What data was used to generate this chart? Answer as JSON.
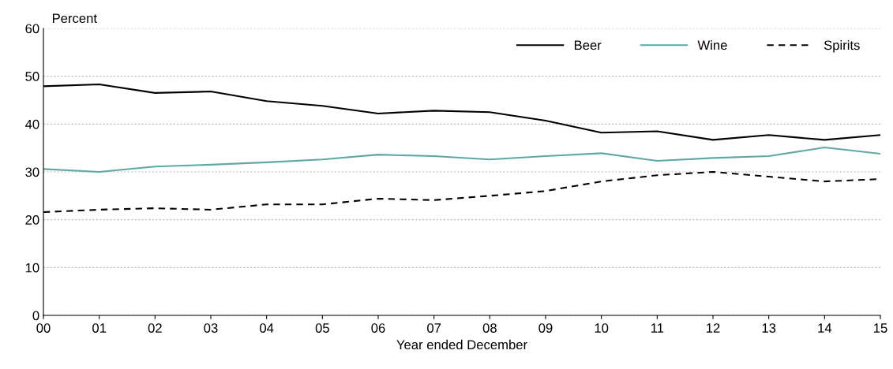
{
  "chart_data": {
    "type": "line",
    "ylabel": "Percent",
    "xlabel": "Year ended December",
    "x": [
      0,
      1,
      2,
      3,
      4,
      5,
      6,
      7,
      8,
      9,
      10,
      11,
      12,
      13,
      14,
      15
    ],
    "xlim": [
      0,
      15
    ],
    "xticks": [
      {
        "value": 0,
        "label": "00"
      },
      {
        "value": 1,
        "label": "01"
      },
      {
        "value": 2,
        "label": "02"
      },
      {
        "value": 3,
        "label": "03"
      },
      {
        "value": 4,
        "label": "04"
      },
      {
        "value": 5,
        "label": "05"
      },
      {
        "value": 6,
        "label": "06"
      },
      {
        "value": 7,
        "label": "07"
      },
      {
        "value": 8,
        "label": "08"
      },
      {
        "value": 9,
        "label": "09"
      },
      {
        "value": 10,
        "label": "10"
      },
      {
        "value": 11,
        "label": "11"
      },
      {
        "value": 12,
        "label": "12"
      },
      {
        "value": 13,
        "label": "13"
      },
      {
        "value": 14,
        "label": "14"
      },
      {
        "value": 15,
        "label": "15"
      }
    ],
    "ylim": [
      0,
      60
    ],
    "yticks": [
      0,
      10,
      20,
      30,
      40,
      50,
      60
    ],
    "grid": "y",
    "legend": "top right",
    "series": [
      {
        "name": "Beer",
        "color": "#000000",
        "line_style": "solid",
        "values": [
          47.9,
          48.3,
          46.5,
          46.8,
          44.8,
          43.8,
          42.2,
          42.8,
          42.5,
          40.7,
          38.2,
          38.5,
          36.7,
          37.7,
          36.7,
          37.7
        ]
      },
      {
        "name": "Wine",
        "color": "#5fa8a3",
        "line_style": "solid",
        "values": [
          30.6,
          30.0,
          31.1,
          31.5,
          32.0,
          32.6,
          33.6,
          33.3,
          32.6,
          33.3,
          33.9,
          32.3,
          32.9,
          33.3,
          35.1,
          33.8
        ]
      },
      {
        "name": "Spirits",
        "color": "#000000",
        "line_style": "dashed",
        "values": [
          21.6,
          22.1,
          22.4,
          22.1,
          23.2,
          23.2,
          24.4,
          24.1,
          25.0,
          26.0,
          28.0,
          29.3,
          30.0,
          29.0,
          28.0,
          28.5
        ]
      }
    ]
  }
}
